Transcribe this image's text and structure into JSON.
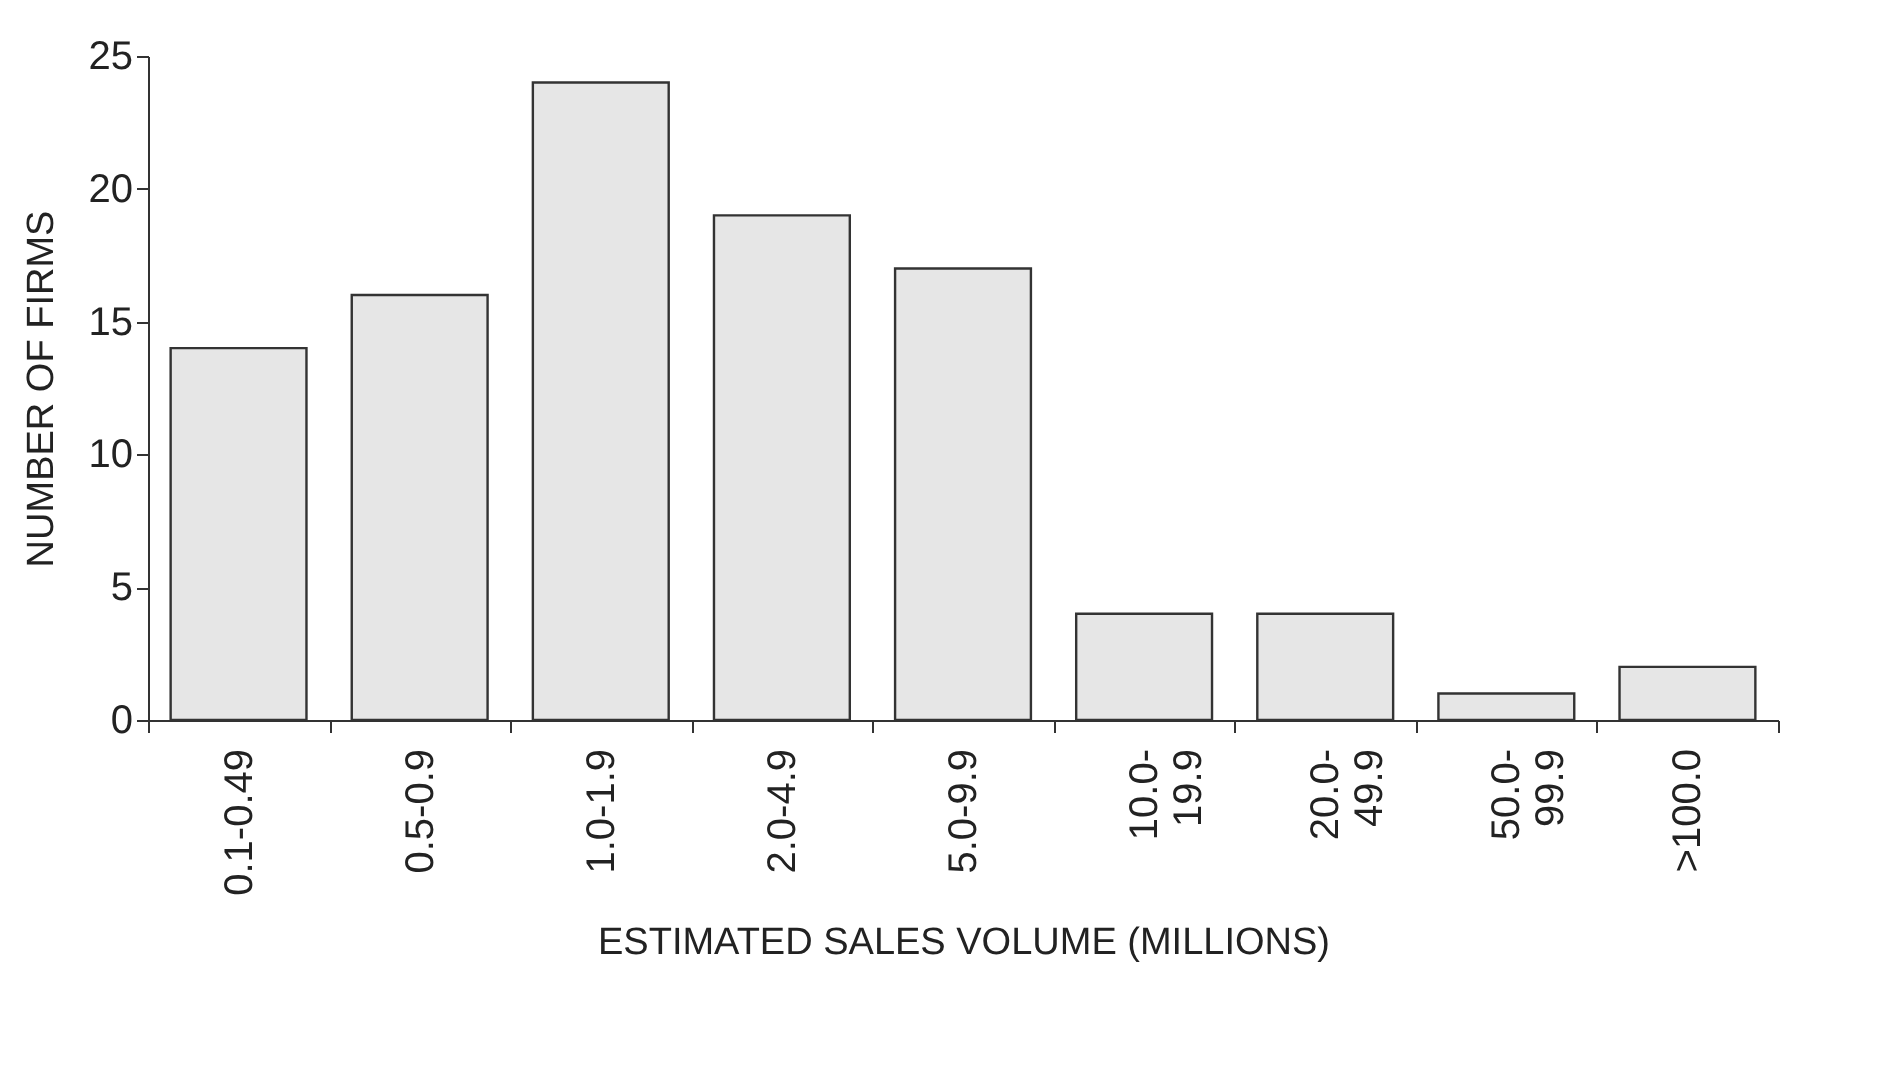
{
  "chart_data": {
    "type": "bar",
    "xlabel": "ESTIMATED SALES VOLUME (MILLIONS)",
    "ylabel": "NUMBER OF FIRMS",
    "categories": [
      "0.1-0.49",
      "0.5-0.9",
      "1.0-1.9",
      "2.0-4.9",
      "5.0-9.9",
      "10.0-19.9",
      "20.0-49.9",
      "50.0-99.9",
      ">100.0"
    ],
    "values": [
      14,
      16,
      24,
      19,
      17,
      4,
      4,
      1,
      2
    ],
    "color": "#e6e6e6",
    "ylim": [
      0,
      25
    ],
    "yticks": [
      0,
      5,
      10,
      15,
      20,
      25
    ],
    "grid": false
  }
}
